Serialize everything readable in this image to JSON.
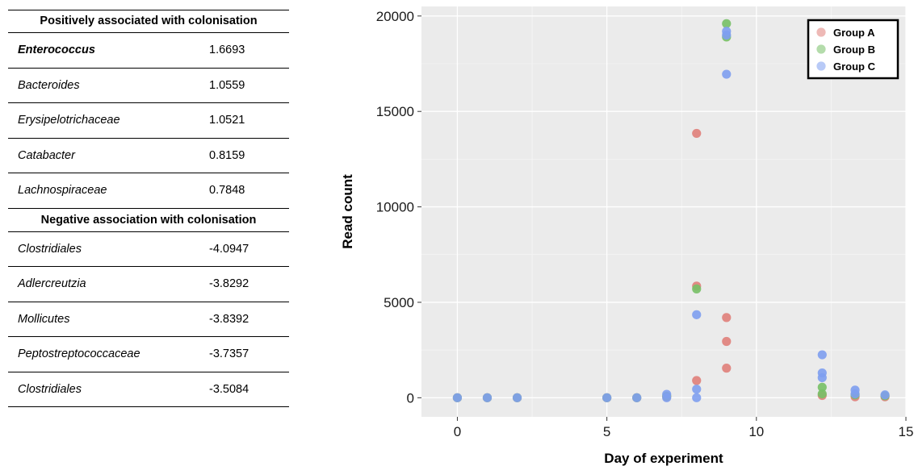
{
  "table": {
    "positive_header": "Positively associated with colonisation",
    "positive_rows": [
      {
        "taxon": "Enterococcus",
        "value": "1.6693",
        "bold": true
      },
      {
        "taxon": "Bacteroides",
        "value": "1.0559"
      },
      {
        "taxon": "Erysipelotrichaceae",
        "value": "1.0521"
      },
      {
        "taxon": "Catabacter",
        "value": "0.8159"
      },
      {
        "taxon": "Lachnospiraceae",
        "value": "0.7848"
      }
    ],
    "negative_header": "Negative association with colonisation",
    "negative_rows": [
      {
        "taxon": "Clostridiales",
        "value": "-4.0947"
      },
      {
        "taxon": "Adlercreutzia",
        "value": "-3.8292"
      },
      {
        "taxon": "Mollicutes",
        "value": "-3.8392"
      },
      {
        "taxon": "Peptostreptococcaceae",
        "value": "-3.7357"
      },
      {
        "taxon": "Clostridiales",
        "value": "-3.5084"
      }
    ]
  },
  "chart_data": {
    "type": "scatter",
    "title": "",
    "xlabel": "Day of experiment",
    "ylabel": "Read count",
    "xlim": [
      -1.2,
      15
    ],
    "ylim": [
      -1000,
      20500
    ],
    "xticks": [
      0,
      5,
      10,
      15
    ],
    "yticks": [
      0,
      5000,
      10000,
      15000,
      20000
    ],
    "grid": true,
    "legend_position": "top-right",
    "series": [
      {
        "name": "Group A",
        "color": "#E07F7A",
        "points": [
          [
            0,
            0
          ],
          [
            1,
            0
          ],
          [
            2,
            0
          ],
          [
            5,
            0
          ],
          [
            6,
            0
          ],
          [
            7,
            50
          ],
          [
            8,
            13850
          ],
          [
            8,
            5850
          ],
          [
            8,
            900
          ],
          [
            9,
            4200
          ],
          [
            9,
            2950
          ],
          [
            9,
            1550
          ],
          [
            12.2,
            120
          ],
          [
            13.3,
            50
          ],
          [
            14.3,
            50
          ]
        ]
      },
      {
        "name": "Group B",
        "color": "#77C066",
        "points": [
          [
            0,
            0
          ],
          [
            1,
            0
          ],
          [
            2,
            0
          ],
          [
            5,
            0
          ],
          [
            6,
            0
          ],
          [
            7,
            80
          ],
          [
            8,
            5700
          ],
          [
            9,
            19600
          ],
          [
            9,
            18900
          ],
          [
            12.2,
            550
          ],
          [
            12.2,
            200
          ],
          [
            13.3,
            150
          ],
          [
            14.3,
            100
          ]
        ]
      },
      {
        "name": "Group C",
        "color": "#7E9EF0",
        "points": [
          [
            0,
            0
          ],
          [
            1,
            0
          ],
          [
            2,
            0
          ],
          [
            5,
            0
          ],
          [
            6,
            0
          ],
          [
            7,
            180
          ],
          [
            7,
            0
          ],
          [
            8,
            4350
          ],
          [
            8,
            450
          ],
          [
            8,
            0
          ],
          [
            9,
            19200
          ],
          [
            9,
            19000
          ],
          [
            9,
            16950
          ],
          [
            12.2,
            2250
          ],
          [
            12.2,
            1300
          ],
          [
            12.2,
            1050
          ],
          [
            13.3,
            400
          ],
          [
            13.3,
            200
          ],
          [
            14.3,
            150
          ]
        ]
      }
    ]
  }
}
